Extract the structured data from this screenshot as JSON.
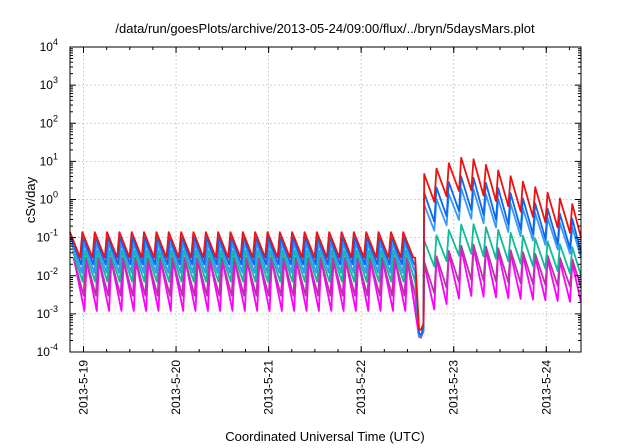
{
  "chart_data": {
    "type": "line",
    "title": "/data/run/goesPlots/archive/2013-05-24/09:00/flux/../bryn/5daysMars.plot",
    "xlabel": "Coordinated Universal Time (UTC)",
    "ylabel": "cSv/day",
    "yscale": "log",
    "ylim": [
      0.0001,
      10000
    ],
    "xlim": [
      "2013-05-18 20:30",
      "2013-05-24 09:00"
    ],
    "grid": true,
    "x_ticks": [
      {
        "value": "2013-05-19",
        "label": "2013-5-19"
      },
      {
        "value": "2013-05-20",
        "label": "2013-5-20"
      },
      {
        "value": "2013-05-21",
        "label": "2013-5-21"
      },
      {
        "value": "2013-05-22",
        "label": "2013-5-22"
      },
      {
        "value": "2013-05-23",
        "label": "2013-5-23"
      },
      {
        "value": "2013-05-24",
        "label": "2013-5-24"
      }
    ],
    "y_ticks": [
      {
        "value": 0.0001,
        "base": "10",
        "exp": "-4"
      },
      {
        "value": 0.001,
        "base": "10",
        "exp": "-3"
      },
      {
        "value": 0.01,
        "base": "10",
        "exp": "-2"
      },
      {
        "value": 0.1,
        "base": "10",
        "exp": "-1"
      },
      {
        "value": 1,
        "base": "10",
        "exp": "0"
      },
      {
        "value": 10,
        "base": "10",
        "exp": "1"
      },
      {
        "value": 100,
        "base": "10",
        "exp": "2"
      },
      {
        "value": 1000,
        "base": "10",
        "exp": "3"
      },
      {
        "value": 10000,
        "base": "10",
        "exp": "4"
      }
    ],
    "orbit_period_hours": 3.2,
    "event": {
      "dip_start": "2013-05-22 14:00",
      "dip_min": "2013-05-22 15:00",
      "onset": "2013-05-22 16:20",
      "decay_end": "2013-05-24 09:00"
    },
    "series": [
      {
        "color": "#ee1111",
        "quiet_peak": 0.14,
        "quiet_trough": 0.03,
        "dip_min": 0.0004,
        "storm_peak": 14,
        "storm_trough": 2.0,
        "end_peak": 0.6,
        "end_trough": 0.1
      },
      {
        "color": "#1166ee",
        "quiet_peak": 0.1,
        "quiet_trough": 0.02,
        "dip_min": 0.0003,
        "storm_peak": 4.5,
        "storm_trough": 0.6,
        "end_peak": 0.25,
        "end_trough": 0.04
      },
      {
        "color": "#3399ff",
        "quiet_peak": 0.07,
        "quiet_trough": 0.012,
        "dip_min": 0.00028,
        "storm_peak": 2.2,
        "storm_trough": 0.35,
        "end_peak": 0.15,
        "end_trough": 0.03
      },
      {
        "color": "#11bb99",
        "quiet_peak": 0.045,
        "quiet_trough": 0.007,
        "dip_min": 0.00027,
        "storm_peak": 0.25,
        "storm_trough": 0.04,
        "end_peak": 0.05,
        "end_trough": 0.01
      },
      {
        "color": "#bb33aa",
        "quiet_peak": 0.03,
        "quiet_trough": 0.003,
        "dip_min": 0.00026,
        "storm_peak": 0.07,
        "storm_trough": 0.008,
        "end_peak": 0.025,
        "end_trough": 0.005
      },
      {
        "color": "#ff00ff",
        "quiet_peak": 0.025,
        "quiet_trough": 0.0012,
        "dip_min": 0.00025,
        "storm_peak": 0.06,
        "storm_trough": 0.003,
        "end_peak": 0.02,
        "end_trough": 0.002
      }
    ]
  }
}
